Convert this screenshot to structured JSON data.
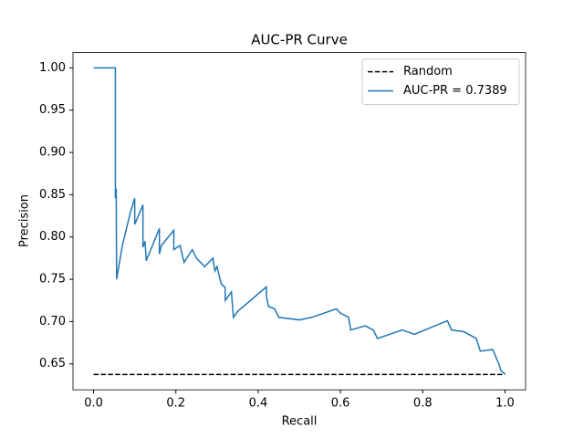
{
  "chart_data": {
    "type": "line",
    "title": "AUC-PR Curve",
    "x_label": "Recall",
    "y_label": "Precision",
    "xlim": [
      -0.05,
      1.05
    ],
    "ylim": [
      0.6193,
      1.0181
    ],
    "xticks": [
      {
        "value": 0,
        "label": "0.0"
      },
      {
        "value": 0.2,
        "label": "0.2"
      },
      {
        "value": 0.4,
        "label": "0.4"
      },
      {
        "value": 0.6,
        "label": "0.6"
      },
      {
        "value": 0.8,
        "label": "0.8"
      },
      {
        "value": 1,
        "label": "1.0"
      }
    ],
    "yticks": [
      {
        "value": 0.65,
        "label": "0.65"
      },
      {
        "value": 0.7,
        "label": "0.70"
      },
      {
        "value": 0.75,
        "label": "0.75"
      },
      {
        "value": 0.8,
        "label": "0.80"
      },
      {
        "value": 0.85,
        "label": "0.85"
      },
      {
        "value": 0.9,
        "label": "0.90"
      },
      {
        "value": 0.95,
        "label": "0.95"
      },
      {
        "value": 1,
        "label": "1.00"
      }
    ],
    "legend": "upper right",
    "series": [
      {
        "name": "Random",
        "color": "#000000",
        "dash": true,
        "x": [
          0,
          1
        ],
        "values": [
          0.6374,
          0.6374
        ]
      },
      {
        "name": "AUC-PR = 0.7389",
        "color": "#1f77b4",
        "dash": false,
        "x": [
          0,
          0.053,
          0.053,
          0.055,
          0.056,
          0.07,
          0.09,
          0.1,
          0.1,
          0.12,
          0.12,
          0.125,
          0.128,
          0.16,
          0.16,
          0.165,
          0.195,
          0.195,
          0.21,
          0.22,
          0.24,
          0.25,
          0.27,
          0.29,
          0.295,
          0.3,
          0.31,
          0.32,
          0.32,
          0.335,
          0.34,
          0.35,
          0.42,
          0.42,
          0.425,
          0.44,
          0.45,
          0.5,
          0.53,
          0.59,
          0.6,
          0.62,
          0.625,
          0.66,
          0.68,
          0.69,
          0.72,
          0.75,
          0.78,
          0.86,
          0.87,
          0.9,
          0.93,
          0.94,
          0.97,
          0.985,
          0.99,
          1.0
        ],
        "values": [
          1.0,
          1.0,
          0.846,
          0.857,
          0.75,
          0.79,
          0.83,
          0.846,
          0.815,
          0.838,
          0.788,
          0.795,
          0.772,
          0.81,
          0.78,
          0.79,
          0.808,
          0.785,
          0.79,
          0.77,
          0.785,
          0.775,
          0.765,
          0.775,
          0.76,
          0.765,
          0.745,
          0.74,
          0.725,
          0.735,
          0.705,
          0.712,
          0.741,
          0.73,
          0.718,
          0.715,
          0.705,
          0.702,
          0.705,
          0.715,
          0.71,
          0.705,
          0.69,
          0.695,
          0.69,
          0.68,
          0.685,
          0.69,
          0.685,
          0.701,
          0.69,
          0.688,
          0.68,
          0.665,
          0.667,
          0.65,
          0.642,
          0.638
        ]
      }
    ]
  }
}
